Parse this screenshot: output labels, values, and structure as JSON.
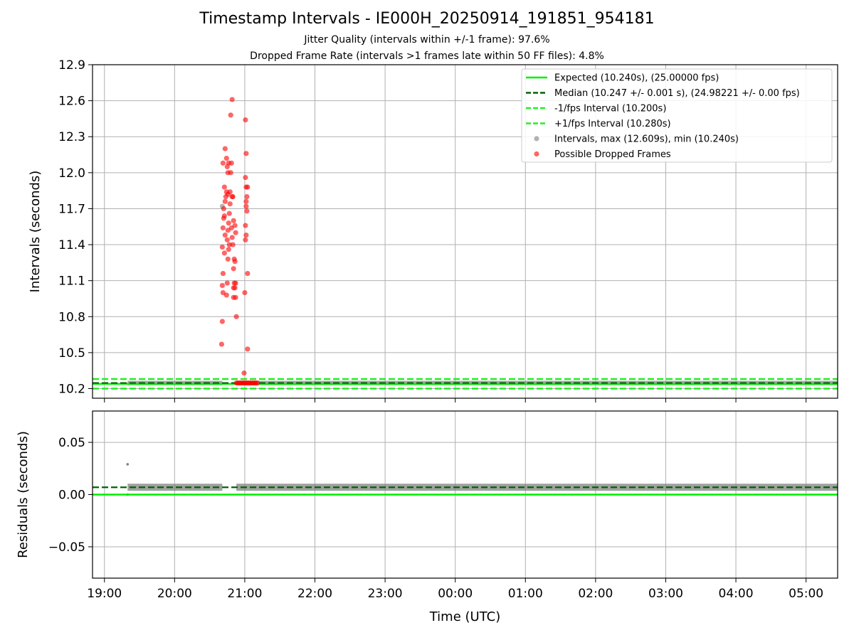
{
  "title": "Timestamp Intervals - IE000H_20250914_191851_954181",
  "subtitle_1": "Jitter Quality (intervals within +/-1 frame): 97.6%",
  "subtitle_2": "Dropped Frame Rate (intervals >1 frames late within 50 FF files): 4.8%",
  "colors": {
    "expected": "#00ee00",
    "median": "#006400",
    "interval_bounds": "#22ee22",
    "intervals": "#808080",
    "dropped": "#ff0000",
    "grid": "#b0b0b0"
  },
  "chart_data": [
    {
      "type": "scatter",
      "panel": "intervals",
      "ylabel": "Intervals (seconds)",
      "xlabel": "",
      "xlim": [
        18.83,
        29.45
      ],
      "ylim": [
        10.12,
        12.9
      ],
      "yticks": [
        10.2,
        10.5,
        10.8,
        11.1,
        11.4,
        11.7,
        12.0,
        12.3,
        12.6,
        12.9
      ],
      "ytick_labels": [
        "10.2",
        "10.5",
        "10.8",
        "11.1",
        "11.4",
        "11.7",
        "12.0",
        "12.3",
        "12.6",
        "12.9"
      ],
      "xticks": [
        19,
        20,
        21,
        22,
        23,
        24,
        25,
        26,
        27,
        28,
        29
      ],
      "grid": true,
      "legend": "top-right",
      "legend_entries": [
        {
          "label": "Expected (10.240s), (25.00000 fps)",
          "style": "solid-line",
          "color": "#00ee00"
        },
        {
          "label": "Median (10.247 +/- 0.001 s), (24.98221 +/- 0.00 fps)",
          "style": "dashed-line",
          "color": "#006400"
        },
        {
          "label": "-1/fps Interval (10.200s)",
          "style": "dashed-line",
          "color": "#22ee22"
        },
        {
          "label": "+1/fps Interval (10.280s)",
          "style": "dashed-line",
          "color": "#22ee22"
        },
        {
          "label": "Intervals, max (12.609s), min (10.240s)",
          "style": "marker",
          "color": "#808080"
        },
        {
          "label": "Possible Dropped Frames",
          "style": "marker",
          "color": "#ff0000"
        }
      ],
      "hlines": {
        "expected": 10.24,
        "median": 10.247,
        "lower": 10.2,
        "upper": 10.28
      },
      "series": [
        {
          "name": "Intervals, max (12.609s), min (10.240s)",
          "segments": [
            [
              19.33,
              20.68
            ],
            [
              20.88,
              29.45
            ]
          ],
          "value": 10.247,
          "outliers": [
            [
              20.68,
              11.72
            ]
          ]
        },
        {
          "name": "Possible Dropped Frames",
          "points": [
            [
              20.67,
              10.57
            ],
            [
              20.68,
              10.76
            ],
            [
              20.69,
              11.0
            ],
            [
              20.68,
              11.06
            ],
            [
              20.69,
              11.16
            ],
            [
              20.68,
              11.38
            ],
            [
              20.71,
              11.33
            ],
            [
              20.72,
              11.48
            ],
            [
              20.69,
              11.54
            ],
            [
              20.7,
              11.62
            ],
            [
              20.71,
              11.64
            ],
            [
              20.7,
              11.7
            ],
            [
              20.72,
              11.76
            ],
            [
              20.73,
              11.8
            ],
            [
              20.74,
              11.84
            ],
            [
              20.71,
              11.88
            ],
            [
              20.69,
              12.08
            ],
            [
              20.72,
              12.2
            ],
            [
              20.74,
              12.12
            ],
            [
              20.75,
              12.05
            ],
            [
              20.76,
              12.0
            ],
            [
              20.77,
              12.08
            ],
            [
              20.74,
              10.98
            ],
            [
              20.75,
              11.08
            ],
            [
              20.76,
              11.28
            ],
            [
              20.77,
              11.36
            ],
            [
              20.78,
              11.4
            ],
            [
              20.75,
              11.44
            ],
            [
              20.76,
              11.52
            ],
            [
              20.77,
              11.58
            ],
            [
              20.78,
              11.66
            ],
            [
              20.79,
              11.74
            ],
            [
              20.76,
              11.82
            ],
            [
              20.79,
              11.84
            ],
            [
              20.8,
              12.48
            ],
            [
              20.82,
              12.61
            ],
            [
              20.8,
              12.0
            ],
            [
              20.81,
              12.08
            ],
            [
              20.82,
              11.8
            ],
            [
              20.83,
              11.8
            ],
            [
              20.81,
              11.54
            ],
            [
              20.82,
              11.46
            ],
            [
              20.83,
              11.4
            ],
            [
              20.84,
              11.6
            ],
            [
              20.86,
              11.56
            ],
            [
              20.85,
              11.28
            ],
            [
              20.86,
              11.26
            ],
            [
              20.84,
              11.2
            ],
            [
              20.85,
              11.08
            ],
            [
              20.84,
              11.04
            ],
            [
              20.86,
              11.04
            ],
            [
              20.87,
              11.08
            ],
            [
              20.84,
              10.96
            ],
            [
              20.87,
              10.96
            ],
            [
              20.88,
              10.8
            ],
            [
              20.87,
              11.5
            ],
            [
              20.99,
              10.33
            ],
            [
              21.0,
              11.0
            ],
            [
              21.01,
              11.44
            ],
            [
              21.02,
              11.48
            ],
            [
              21.01,
              11.56
            ],
            [
              21.02,
              11.72
            ],
            [
              21.03,
              11.68
            ],
            [
              21.02,
              11.76
            ],
            [
              21.03,
              11.8
            ],
            [
              21.04,
              11.88
            ],
            [
              21.02,
              11.88
            ],
            [
              21.01,
              11.96
            ],
            [
              21.02,
              12.16
            ],
            [
              21.01,
              12.44
            ],
            [
              21.04,
              11.16
            ],
            [
              21.04,
              10.53
            ],
            [
              20.88,
              10.247
            ],
            [
              20.9,
              10.247
            ],
            [
              20.92,
              10.247
            ],
            [
              20.94,
              10.247
            ],
            [
              20.96,
              10.247
            ],
            [
              20.98,
              10.247
            ],
            [
              21.0,
              10.247
            ],
            [
              21.02,
              10.247
            ],
            [
              21.04,
              10.247
            ],
            [
              21.06,
              10.247
            ],
            [
              21.08,
              10.247
            ],
            [
              21.1,
              10.247
            ],
            [
              21.12,
              10.247
            ],
            [
              21.14,
              10.247
            ],
            [
              21.16,
              10.247
            ],
            [
              21.18,
              10.247
            ]
          ]
        }
      ]
    },
    {
      "type": "scatter",
      "panel": "residuals",
      "ylabel": "Residuals (seconds)",
      "xlabel": "Time (UTC)",
      "xlim": [
        18.83,
        29.45
      ],
      "ylim": [
        -0.08,
        0.08
      ],
      "yticks": [
        -0.05,
        0.0,
        0.05
      ],
      "ytick_labels": [
        "−0.05",
        "0.00",
        "0.05"
      ],
      "xticks": [
        19,
        20,
        21,
        22,
        23,
        24,
        25,
        26,
        27,
        28,
        29
      ],
      "xtick_labels": [
        "19:00",
        "20:00",
        "21:00",
        "22:00",
        "23:00",
        "00:00",
        "01:00",
        "02:00",
        "03:00",
        "04:00",
        "05:00"
      ],
      "grid": true,
      "hlines": {
        "zero": 0.0,
        "median": 0.007
      },
      "series": [
        {
          "name": "",
          "segments": [
            [
              19.33,
              20.68
            ],
            [
              20.88,
              29.45
            ]
          ],
          "value": 0.007,
          "outliers": [
            [
              19.33,
              0.029
            ],
            [
              19.33,
              0.0
            ]
          ]
        }
      ]
    }
  ]
}
